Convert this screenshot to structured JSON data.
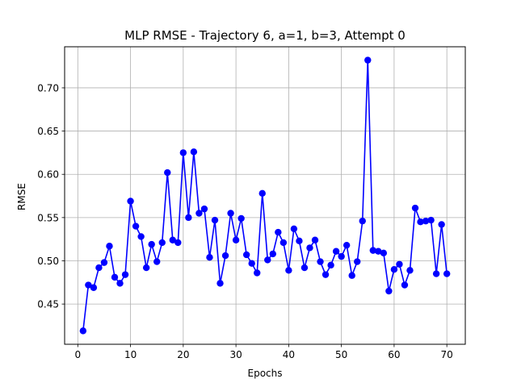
{
  "chart_data": {
    "type": "line",
    "title": "MLP RMSE - Trajectory 6, a=1, b=3, Attempt 0",
    "xlabel": "Epochs",
    "ylabel": "RMSE",
    "xlim": [
      -2.5,
      73.5
    ],
    "ylim": [
      0.4035,
      0.7475
    ],
    "x_ticks": [
      0,
      10,
      20,
      30,
      40,
      50,
      60,
      70
    ],
    "y_ticks": [
      0.45,
      0.5,
      0.55,
      0.6,
      0.65,
      0.7
    ],
    "grid": true,
    "marker": "circle",
    "series": [
      {
        "color": "#0000ff",
        "x": [
          1,
          2,
          3,
          4,
          5,
          6,
          7,
          8,
          9,
          10,
          11,
          12,
          13,
          14,
          15,
          16,
          17,
          18,
          19,
          20,
          21,
          22,
          23,
          24,
          25,
          26,
          27,
          28,
          29,
          30,
          31,
          32,
          33,
          34,
          35,
          36,
          37,
          38,
          39,
          40,
          41,
          42,
          43,
          44,
          45,
          46,
          47,
          48,
          49,
          50,
          51,
          52,
          53,
          54,
          55,
          56,
          57,
          58,
          59,
          60,
          61,
          62,
          63,
          64,
          65,
          66,
          67,
          68,
          69,
          70
        ],
        "y": [
          0.419,
          0.472,
          0.469,
          0.492,
          0.498,
          0.517,
          0.481,
          0.474,
          0.484,
          0.569,
          0.54,
          0.528,
          0.492,
          0.519,
          0.499,
          0.521,
          0.602,
          0.524,
          0.521,
          0.625,
          0.55,
          0.626,
          0.555,
          0.56,
          0.504,
          0.547,
          0.474,
          0.506,
          0.555,
          0.524,
          0.549,
          0.507,
          0.497,
          0.486,
          0.578,
          0.501,
          0.508,
          0.533,
          0.521,
          0.489,
          0.537,
          0.523,
          0.492,
          0.515,
          0.524,
          0.499,
          0.484,
          0.495,
          0.511,
          0.505,
          0.518,
          0.483,
          0.499,
          0.546,
          0.732,
          0.512,
          0.511,
          0.509,
          0.465,
          0.49,
          0.496,
          0.472,
          0.489,
          0.561,
          0.545,
          0.546,
          0.547,
          0.485,
          0.542,
          0.485
        ]
      }
    ]
  }
}
